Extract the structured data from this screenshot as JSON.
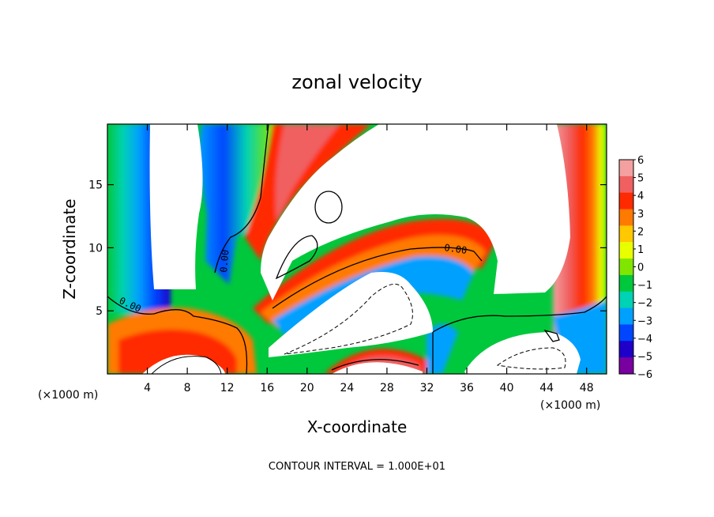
{
  "chart_data": {
    "type": "heatmap",
    "title": "zonal velocity",
    "xlabel": "X-coordinate",
    "ylabel": "Z-coordinate",
    "x_unit_label": "(×1000 m)",
    "y_unit_label": "(×1000 m)",
    "x_ticks": [
      4,
      8,
      12,
      16,
      20,
      24,
      28,
      32,
      36,
      40,
      44,
      48
    ],
    "y_ticks": [
      5,
      10,
      15
    ],
    "xlim": [
      0,
      50
    ],
    "ylim": [
      0,
      19.8
    ],
    "colorbar": {
      "ticks": [
        6,
        5,
        4,
        3,
        2,
        1,
        0,
        -1,
        -2,
        -3,
        -4,
        -5,
        -6
      ],
      "colors": [
        "#f4a0a0",
        "#f06060",
        "#ff2a00",
        "#ff7a00",
        "#ffc800",
        "#e8ff00",
        "#80e600",
        "#00c83c",
        "#00d2b4",
        "#00a0ff",
        "#0046ff",
        "#1e00c8",
        "#7800a0"
      ]
    },
    "contour_labels": [
      "0.00",
      "0.00",
      "0.00"
    ],
    "footnote": "CONTOUR INTERVAL = 1.000E+01"
  }
}
